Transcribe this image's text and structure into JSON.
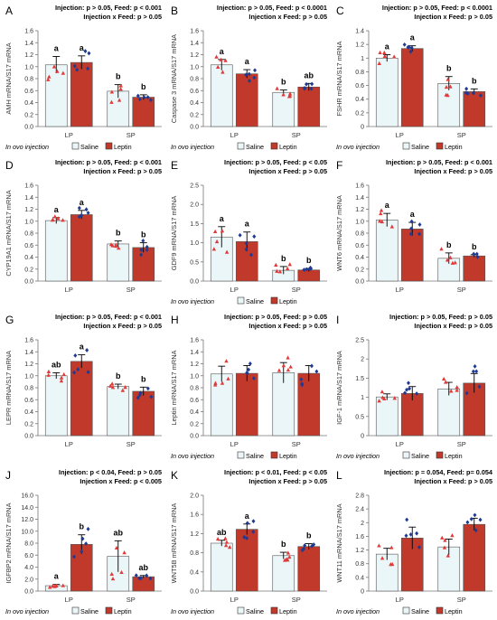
{
  "legend": {
    "injection_label": "In ovo injection",
    "saline": "Saline",
    "leptin": "Leptin"
  },
  "colors": {
    "saline_fill": "#eaf6f8",
    "leptin_fill": "#c0392b",
    "saline_point": "#e23a3a",
    "leptin_point": "#1f3a93",
    "axis": "#777777"
  },
  "chart_data": [
    {
      "type": "bar",
      "letter": "A",
      "ylabel": "AMH mRNA/S17 mRNA",
      "stats": [
        "Injection: p > 0.05, Feed: p < 0.001",
        "Injection x Feed: p > 0.05"
      ],
      "categories": [
        "LP",
        "SP"
      ],
      "series": [
        {
          "name": "Saline",
          "values": [
            1.03,
            0.59
          ],
          "errors": [
            0.14,
            0.11
          ]
        },
        {
          "name": "Leptin",
          "values": [
            1.07,
            0.49
          ],
          "errors": [
            0.11,
            0.04
          ]
        }
      ],
      "letters": [
        [
          "a",
          "b"
        ],
        [
          "a",
          "b"
        ]
      ],
      "yticks": [
        "0.0",
        "0.2",
        "0.4",
        "0.6",
        "0.8",
        "1.0",
        "1.2",
        "1.4",
        "1.6"
      ],
      "ylim": [
        0,
        1.6
      ],
      "show_legend": true
    },
    {
      "type": "bar",
      "letter": "B",
      "ylabel": "Caspase 3 mRNA/S17 mRNA",
      "stats": [
        "Injection: p > 0.05, Feed: p < 0.0001",
        "Injection x Feed: p > 0.05"
      ],
      "categories": [
        "LP",
        "SP"
      ],
      "series": [
        {
          "name": "Saline",
          "values": [
            1.03,
            0.57
          ],
          "errors": [
            0.09,
            0.04
          ]
        },
        {
          "name": "Leptin",
          "values": [
            0.88,
            0.66
          ],
          "errors": [
            0.07,
            0.06
          ]
        }
      ],
      "letters": [
        [
          "a",
          "b"
        ],
        [
          "a",
          "ab"
        ]
      ],
      "yticks": [
        "0.0",
        "0.2",
        "0.4",
        "0.6",
        "0.8",
        "1.0",
        "1.2",
        "1.4",
        "1.6"
      ],
      "ylim": [
        0,
        1.6
      ],
      "show_legend": true
    },
    {
      "type": "bar",
      "letter": "C",
      "ylabel": "FSHR mRNA/S17 mRNA",
      "stats": [
        "Injection: p > 0.05, Feed: p < 0.0001",
        "Injection x Feed: p > 0.05"
      ],
      "categories": [
        "LP",
        "SP"
      ],
      "series": [
        {
          "name": "Saline",
          "values": [
            1.0,
            0.63
          ],
          "errors": [
            0.05,
            0.1
          ]
        },
        {
          "name": "Leptin",
          "values": [
            1.14,
            0.51
          ],
          "errors": [
            0.04,
            0.04
          ]
        }
      ],
      "letters": [
        [
          "a",
          "b"
        ],
        [
          "a",
          "b"
        ]
      ],
      "yticks": [
        "0",
        "0.2",
        "0.4",
        "0.6",
        "0.8",
        "1",
        "1.2",
        "1.4"
      ],
      "ylim": [
        0,
        1.4
      ],
      "show_legend": true
    },
    {
      "type": "bar",
      "letter": "D",
      "ylabel": "CYP19A1 mRNA/S17 mRNA",
      "stats": [
        "Injection: p > 0.05, Feed: p < 0.001",
        "Injection x Feed: p > 0.05"
      ],
      "categories": [
        "LP",
        "SP"
      ],
      "series": [
        {
          "name": "Saline",
          "values": [
            1.01,
            0.62
          ],
          "errors": [
            0.05,
            0.05
          ]
        },
        {
          "name": "Leptin",
          "values": [
            1.11,
            0.56
          ],
          "errors": [
            0.07,
            0.08
          ]
        }
      ],
      "letters": [
        [
          "a",
          "b"
        ],
        [
          "a",
          "b"
        ]
      ],
      "yticks": [
        "0.0",
        "0.2",
        "0.4",
        "0.6",
        "0.8",
        "1.0",
        "1.2",
        "1.4",
        "1.6"
      ],
      "ylim": [
        0,
        1.6
      ],
      "show_legend": false
    },
    {
      "type": "bar",
      "letter": "E",
      "ylabel": "GDF9 mRNA/S17 mRNA",
      "stats": [
        "Injection: p > 0.05, Feed: p < 0.05",
        "Injection x Feed: p > 0.05"
      ],
      "categories": [
        "LP",
        "SP"
      ],
      "series": [
        {
          "name": "Saline",
          "values": [
            1.15,
            0.28
          ],
          "errors": [
            0.27,
            0.1
          ]
        },
        {
          "name": "Leptin",
          "values": [
            1.03,
            0.29
          ],
          "errors": [
            0.25,
            0.04
          ]
        }
      ],
      "letters": [
        [
          "a",
          "b"
        ],
        [
          "a",
          "b"
        ]
      ],
      "yticks": [
        "0.0",
        "0.5",
        "1.0",
        "1.5",
        "2.0",
        "2.5"
      ],
      "ylim": [
        0,
        2.5
      ],
      "show_legend": true
    },
    {
      "type": "bar",
      "letter": "F",
      "ylabel": "WNT6 mRNA/S17 mRNA",
      "stats": [
        "Injection: p > 0.05, Feed: p < 0.001",
        "Injection x Feed: p > 0.05"
      ],
      "categories": [
        "LP",
        "SP"
      ],
      "series": [
        {
          "name": "Saline",
          "values": [
            1.02,
            0.38
          ],
          "errors": [
            0.11,
            0.09
          ]
        },
        {
          "name": "Leptin",
          "values": [
            0.87,
            0.42
          ],
          "errors": [
            0.11,
            0.02
          ]
        }
      ],
      "letters": [
        [
          "a",
          "b"
        ],
        [
          "a",
          "b"
        ]
      ],
      "yticks": [
        "0.0",
        "0.2",
        "0.4",
        "0.6",
        "0.8",
        "1.0",
        "1.2",
        "1.4",
        "1.6"
      ],
      "ylim": [
        0,
        1.6
      ],
      "show_legend": false
    },
    {
      "type": "bar",
      "letter": "G",
      "ylabel": "LEPR mRNA/S17 mRNA",
      "stats": [
        "Injection: p > 0.05, Feed: p < 0.001",
        "Injection x Feed: p > 0.05"
      ],
      "categories": [
        "LP",
        "SP"
      ],
      "series": [
        {
          "name": "Saline",
          "values": [
            1.0,
            0.82
          ],
          "errors": [
            0.05,
            0.04
          ]
        },
        {
          "name": "Leptin",
          "values": [
            1.24,
            0.74
          ],
          "errors": [
            0.11,
            0.07
          ]
        }
      ],
      "letters": [
        [
          "ab",
          "b"
        ],
        [
          "a",
          "b"
        ]
      ],
      "yticks": [
        "0.0",
        "0.2",
        "0.4",
        "0.6",
        "0.8",
        "1.0",
        "1.2",
        "1.4",
        "1.6"
      ],
      "ylim": [
        0,
        1.6
      ],
      "show_legend": false
    },
    {
      "type": "bar",
      "letter": "H",
      "ylabel": "Leptin mRNA/S17 mRNA",
      "stats": [
        "Injection: p > 0.05, Feed: p > 0.05",
        "Injection x Feed: p > 0.05"
      ],
      "categories": [
        "LP",
        "SP"
      ],
      "series": [
        {
          "name": "Saline",
          "values": [
            1.03,
            1.05
          ],
          "errors": [
            0.13,
            0.17
          ]
        },
        {
          "name": "Leptin",
          "values": [
            1.04,
            1.04
          ],
          "errors": [
            0.13,
            0.13
          ]
        }
      ],
      "letters": [
        [
          "",
          ""
        ],
        [
          "",
          ""
        ]
      ],
      "yticks": [
        "0.0",
        "0.2",
        "0.4",
        "0.6",
        "0.8",
        "1.0",
        "1.2",
        "1.4",
        "1.6"
      ],
      "ylim": [
        0,
        1.6
      ],
      "show_legend": true
    },
    {
      "type": "bar",
      "letter": "I",
      "ylabel": "IGF-1 mRNA/S17 mRNA",
      "stats": [
        "Injection: p > 0.05, Feed: p > 0.05",
        "Injection x Feed: p > 0.05"
      ],
      "categories": [
        "LP",
        "SP"
      ],
      "series": [
        {
          "name": "Saline",
          "values": [
            1.01,
            1.22
          ],
          "errors": [
            0.08,
            0.17
          ]
        },
        {
          "name": "Leptin",
          "values": [
            1.1,
            1.37
          ],
          "errors": [
            0.18,
            0.25
          ]
        }
      ],
      "letters": [
        [
          "",
          ""
        ],
        [
          "",
          ""
        ]
      ],
      "yticks": [
        "0",
        "0.5",
        "1",
        "1.5",
        "2",
        "2.5"
      ],
      "ylim": [
        0,
        2.5
      ],
      "show_legend": true
    },
    {
      "type": "bar",
      "letter": "J",
      "ylabel": "IGFBP2 mRNA/S17 mRNA",
      "stats": [
        "Injection: p < 0.04, Feed: p > 0.05",
        "Injection x Feed: p < 0.005"
      ],
      "categories": [
        "LP",
        "SP"
      ],
      "series": [
        {
          "name": "Saline",
          "values": [
            0.9,
            5.8
          ],
          "errors": [
            0.2,
            2.6
          ]
        },
        {
          "name": "Leptin",
          "values": [
            7.8,
            2.4
          ],
          "errors": [
            1.6,
            0.2
          ]
        }
      ],
      "letters": [
        [
          "a",
          "ab"
        ],
        [
          "b",
          "ab"
        ]
      ],
      "yticks": [
        "0.0",
        "2.0",
        "4.0",
        "6.0",
        "8.0",
        "10.0",
        "12.0",
        "14.0",
        "16.0"
      ],
      "ylim": [
        0,
        16
      ],
      "show_legend": true
    },
    {
      "type": "bar",
      "letter": "K",
      "ylabel": "WNT5B mRNA/S17 mRNA",
      "stats": [
        "Injection: p < 0.01, Feed: p < 0.05",
        "Injection x Feed: p > 0.05"
      ],
      "categories": [
        "LP",
        "SP"
      ],
      "series": [
        {
          "name": "Saline",
          "values": [
            1.0,
            0.74
          ],
          "errors": [
            0.06,
            0.07
          ]
        },
        {
          "name": "Leptin",
          "values": [
            1.29,
            0.93
          ],
          "errors": [
            0.11,
            0.06
          ]
        }
      ],
      "letters": [
        [
          "ab",
          "b"
        ],
        [
          "a",
          "b"
        ]
      ],
      "yticks": [
        "0.0",
        "0.4",
        "0.8",
        "1.2",
        "1.6",
        "2.0"
      ],
      "ylim": [
        0,
        2.0
      ],
      "show_legend": true
    },
    {
      "type": "bar",
      "letter": "L",
      "ylabel": "WNT11 mRNA/S17 mRNA",
      "stats": [
        "Injection: p = 0.054, Feed: p= 0.054",
        "Injection x Feed: p > 0.05"
      ],
      "categories": [
        "LP",
        "SP"
      ],
      "series": [
        {
          "name": "Saline",
          "values": [
            1.08,
            1.29
          ],
          "errors": [
            0.17,
            0.23
          ]
        },
        {
          "name": "Leptin",
          "values": [
            1.55,
            1.95
          ],
          "errors": [
            0.32,
            0.18
          ]
        }
      ],
      "letters": [
        [
          "",
          ""
        ],
        [
          "",
          ""
        ]
      ],
      "yticks": [
        "0",
        "0.4",
        "0.8",
        "1.2",
        "1.6",
        "2",
        "2.4",
        "2.8"
      ],
      "ylim": [
        0,
        2.8
      ],
      "show_legend": true
    }
  ]
}
